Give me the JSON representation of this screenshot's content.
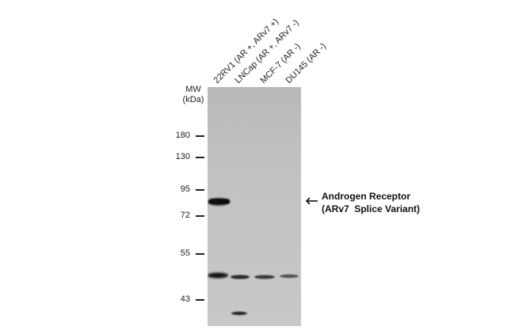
{
  "lanes": [
    {
      "label": "22RV1 (AR +, ARv7 +)"
    },
    {
      "label": "LNCap (AR +, ARv7 -)"
    },
    {
      "label": "MCF-7 (AR -)"
    },
    {
      "label": "DU145 (AR -)"
    }
  ],
  "mw_header": {
    "line1": "MW",
    "line2": "(kDa)"
  },
  "markers": [
    {
      "label": "180",
      "kda": 180
    },
    {
      "label": "130",
      "kda": 130
    },
    {
      "label": "95",
      "kda": 95
    },
    {
      "label": "72",
      "kda": 72
    },
    {
      "label": "55",
      "kda": 55
    },
    {
      "label": "43",
      "kda": 43
    }
  ],
  "annotation": {
    "line1": "Androgen Receptor",
    "line2": "(ARv7  Splice Variant)"
  }
}
